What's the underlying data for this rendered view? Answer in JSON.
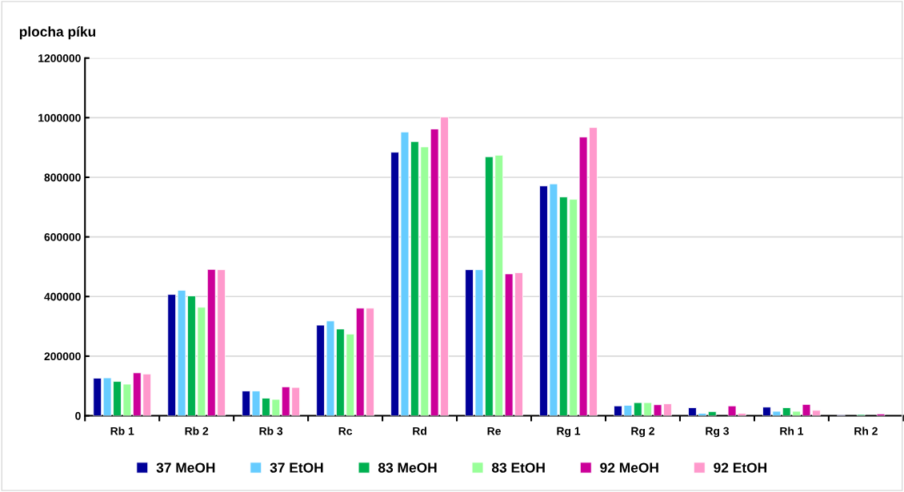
{
  "chart_data": {
    "type": "bar",
    "ylabel": "plocha píku",
    "categories": [
      "Rb 1",
      "Rb 2",
      "Rb 3",
      "Rc",
      "Rd",
      "Re",
      "Rg 1",
      "Rg 2",
      "Rg 3",
      "Rh 1",
      "Rh 2"
    ],
    "series": [
      {
        "name": "37 MeOH",
        "color": "#000099",
        "values": [
          126000,
          407000,
          83000,
          304000,
          884000,
          490000,
          771000,
          33000,
          27000,
          29000,
          2000
        ]
      },
      {
        "name": "37 EtOH",
        "color": "#66ccff",
        "values": [
          127000,
          421000,
          83000,
          318000,
          952000,
          490000,
          778000,
          35000,
          8000,
          15000,
          null
        ]
      },
      {
        "name": "83 MeOH",
        "color": "#00b050",
        "values": [
          115000,
          402000,
          59000,
          291000,
          920000,
          869000,
          734000,
          44000,
          14000,
          27000,
          4000
        ]
      },
      {
        "name": "83 EtOH",
        "color": "#99ff99",
        "values": [
          106000,
          364000,
          55000,
          274000,
          902000,
          874000,
          726000,
          44000,
          null,
          15000,
          null
        ]
      },
      {
        "name": "92 MeOH",
        "color": "#cc0099",
        "values": [
          144000,
          491000,
          97000,
          361000,
          962000,
          476000,
          935000,
          37000,
          33000,
          38000,
          6000
        ]
      },
      {
        "name": "92 EtOH",
        "color": "#ff99cc",
        "values": [
          140000,
          490000,
          95000,
          361000,
          1002000,
          480000,
          967000,
          40000,
          8000,
          18000,
          null
        ]
      }
    ],
    "ylim": [
      0,
      1200000
    ],
    "yticks": [
      0,
      200000,
      400000,
      600000,
      800000,
      1000000,
      1200000
    ],
    "grid": "y",
    "legend": "bottom"
  }
}
